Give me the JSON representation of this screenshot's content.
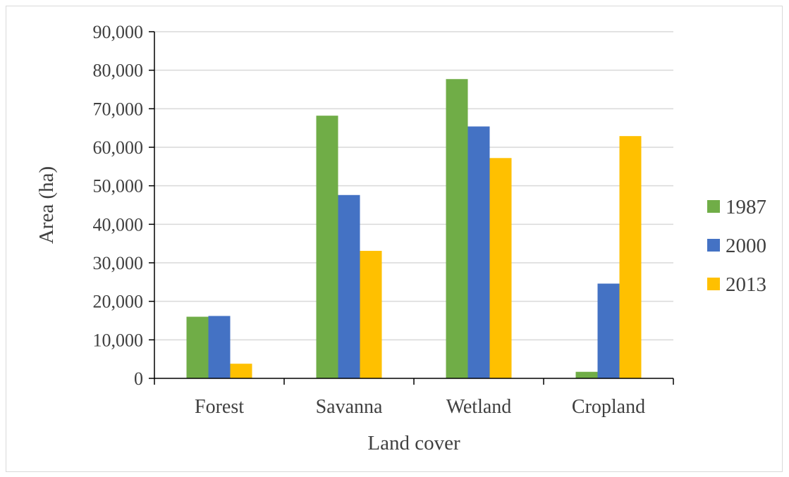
{
  "chart_data": {
    "type": "bar",
    "categories": [
      "Forest",
      "Savanna",
      "Wetland",
      "Cropland"
    ],
    "series": [
      {
        "name": "1987",
        "color": "#70ad47",
        "values": [
          16000,
          68200,
          77700,
          1700
        ]
      },
      {
        "name": "2000",
        "color": "#4472c4",
        "values": [
          16200,
          47600,
          65400,
          24600
        ]
      },
      {
        "name": "2013",
        "color": "#ffc000",
        "values": [
          3800,
          33100,
          57200,
          62900
        ]
      }
    ],
    "xlabel": "Land cover",
    "ylabel": "Area (ha)",
    "ylim": [
      0,
      90000
    ],
    "yticks": [
      0,
      10000,
      20000,
      30000,
      40000,
      50000,
      60000,
      70000,
      80000,
      90000
    ],
    "ytick_labels": [
      "0",
      "10,000",
      "20,000",
      "30,000",
      "40,000",
      "50,000",
      "60,000",
      "70,000",
      "80,000",
      "90,000"
    ],
    "grid": true,
    "legend": "right"
  }
}
